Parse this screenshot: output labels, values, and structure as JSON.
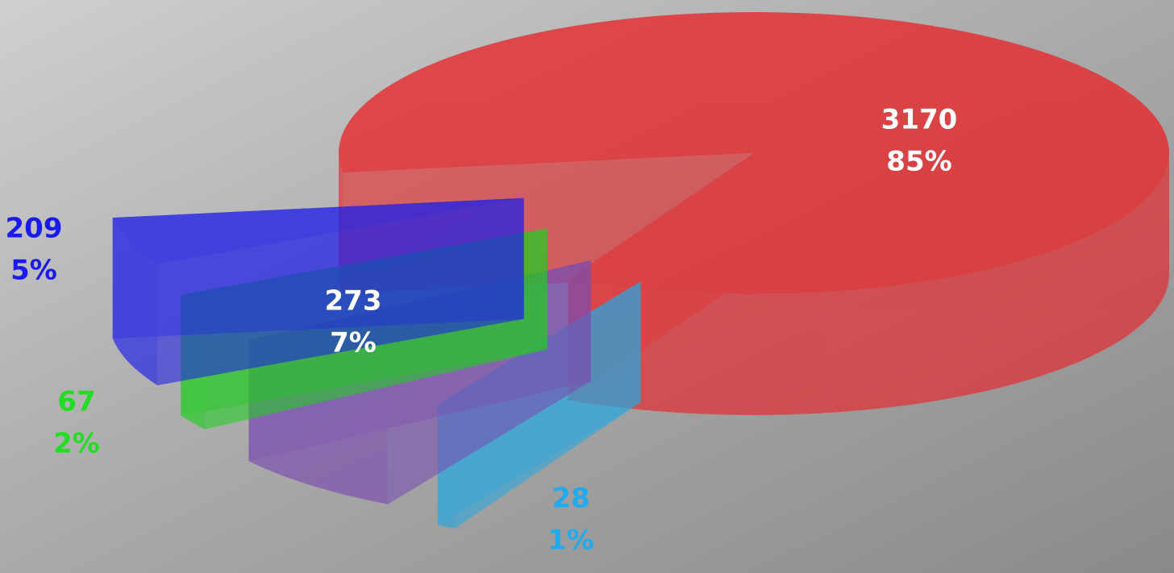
{
  "chart_data": {
    "type": "pie",
    "values": [
      3170,
      28,
      273,
      67,
      209
    ],
    "percent_values": [
      85,
      1,
      7,
      2,
      5
    ],
    "percent_labels": [
      "85%",
      "1%",
      "7%",
      "2%",
      "5%"
    ],
    "colors": [
      "#e8262a",
      "#2aa7dd",
      "#7a4db0",
      "#22cc22",
      "#2020e8"
    ],
    "label_colors": [
      "#ffffff",
      "#22aaee",
      "#ffffff",
      "#22dd22",
      "#1a1aee"
    ]
  }
}
